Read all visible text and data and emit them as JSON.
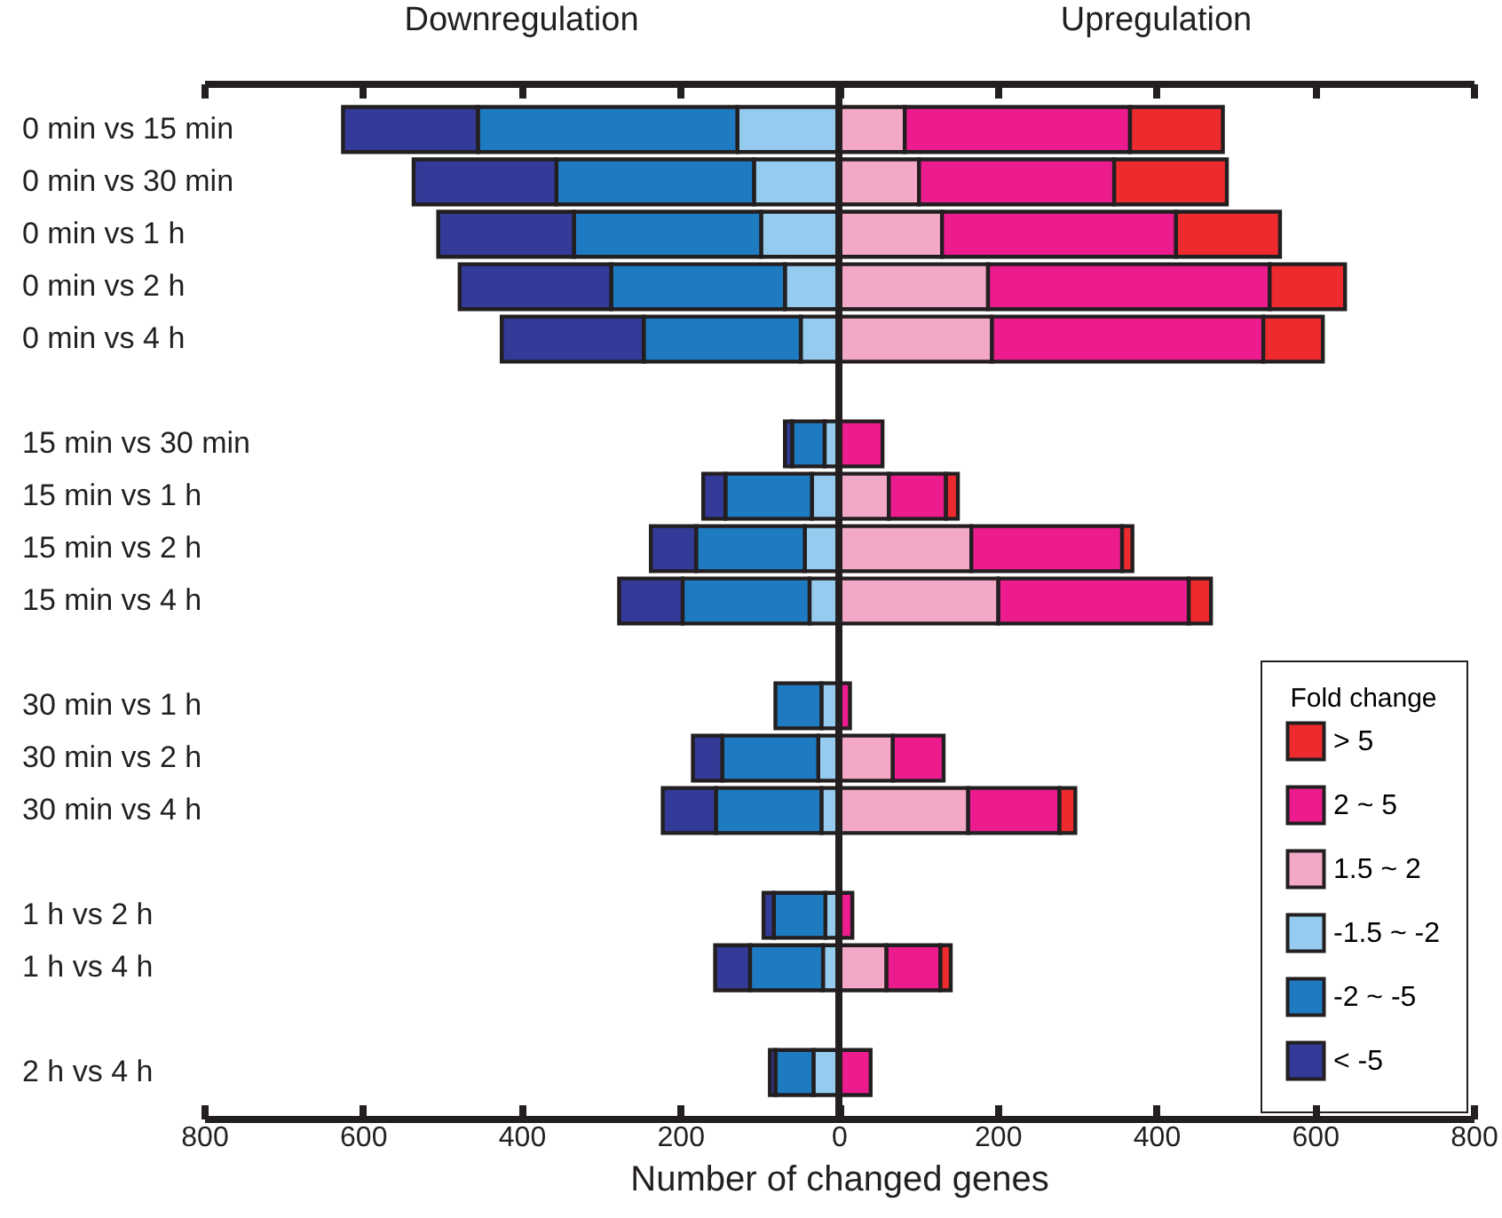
{
  "chart_data": {
    "type": "bar",
    "orientation": "horizontal",
    "stacked": true,
    "xlabel": "Number of changed genes",
    "legend_title": "Fold change",
    "legend": "bottom right",
    "grid": false,
    "annotations": [
      "Downregulation",
      "Upregulation"
    ],
    "categories": [
      "0 min vs 15 min",
      "0 min vs 30 min",
      "0 min vs 1 h",
      "0 min vs 2 h",
      "0 min vs 4 h",
      null,
      "15 min vs 30 min",
      "15 min vs 1 h",
      "15 min vs 2 h",
      "15 min vs 4 h",
      null,
      "30 min vs 1 h",
      "30 min vs 2 h",
      "30 min vs 4 h",
      null,
      "1 h vs 2 h",
      "1 h vs 4 h",
      null,
      "2 h vs 4 h"
    ],
    "xlim": [
      -800,
      800
    ],
    "xticks": [
      {
        "value": -800,
        "label": "800"
      },
      {
        "value": -600,
        "label": "600"
      },
      {
        "value": -400,
        "label": "400"
      },
      {
        "value": -200,
        "label": "200"
      },
      0,
      200,
      400,
      600,
      800
    ],
    "ref_lines": [
      {
        "axis": "x",
        "value": 0,
        "color": "#231f20"
      }
    ],
    "series": [
      {
        "name": "1.5 ~ 2",
        "color": "#f2a8c6",
        "values": [
          83,
          101,
          130,
          188,
          193,
          null,
          null,
          63,
          167,
          201,
          null,
          0,
          68,
          163,
          null,
          0,
          60,
          null,
          0
        ]
      },
      {
        "name": "2 ~ 5",
        "color": "#ec1c8f",
        "values": [
          284,
          246,
          295,
          355,
          342,
          null,
          55,
          72,
          190,
          240,
          null,
          14,
          64,
          115,
          null,
          17,
          68,
          null,
          40
        ]
      },
      {
        "name": "> 5",
        "color": "#ed2b2e",
        "values": [
          117,
          142,
          131,
          95,
          75,
          null,
          0,
          15,
          13,
          28,
          null,
          0,
          0,
          20,
          null,
          0,
          13,
          null,
          0
        ]
      },
      {
        "name": "-1.5 ~ -2",
        "color": "#95cbee",
        "values": [
          -128,
          -107,
          -98,
          -68,
          -48,
          null,
          -18,
          -34,
          -43,
          -37,
          null,
          -22,
          -26,
          -22,
          null,
          -17,
          -20,
          null,
          -32
        ]
      },
      {
        "name": "-2 ~ -5",
        "color": "#1f7bc1",
        "values": [
          -327,
          -249,
          -236,
          -219,
          -198,
          null,
          -41,
          -109,
          -137,
          -160,
          null,
          -58,
          -121,
          -133,
          null,
          -65,
          -92,
          null,
          -48
        ]
      },
      {
        "name": "< -5",
        "color": "#333a97",
        "values": [
          -170,
          -180,
          -171,
          -191,
          -179,
          null,
          -9,
          -28,
          -57,
          -80,
          null,
          0,
          -37,
          -67,
          null,
          -13,
          -44,
          null,
          -7
        ]
      }
    ]
  }
}
